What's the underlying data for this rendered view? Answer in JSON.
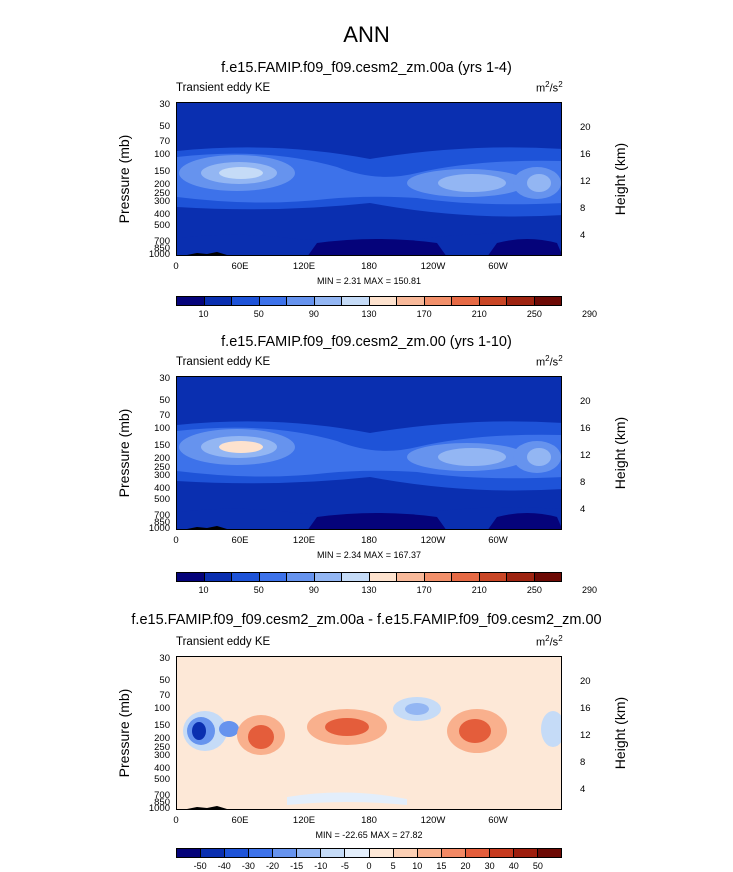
{
  "main_title": "ANN",
  "chart_data": [
    {
      "type": "heatmap",
      "title": "f.e15.FAMIP.f09_f09.cesm2_zm.00a (yrs 1-4)",
      "left_label": "Transient eddy KE",
      "units": {
        "base": "m",
        "exp1": "2",
        "mid": "/s",
        "exp2": "2"
      },
      "ylabel": "Pressure (mb)",
      "y2label": "Height (km)",
      "y_ticks": [
        "30",
        "50",
        "70",
        "100",
        "150",
        "200",
        "250",
        "300",
        "400",
        "500",
        "700",
        "850",
        "1000"
      ],
      "y2_ticks": [
        "20",
        "16",
        "12",
        "8",
        "4"
      ],
      "x_ticks": [
        "0",
        "60E",
        "120E",
        "180",
        "120W",
        "60W"
      ],
      "min": 2.31,
      "max": 150.81,
      "minmax_text": "MIN =   2.31  MAX = 150.81",
      "colorbar_labels": [
        "10",
        "50",
        "90",
        "130",
        "170",
        "210",
        "250",
        "290"
      ],
      "colorbar_colors": [
        "#05037a",
        "#0a2fb0",
        "#1e53d8",
        "#3d72ea",
        "#6693ee",
        "#93b6f3",
        "#c5dbf7",
        "#fde2ce",
        "#f8b99a",
        "#f2906b",
        "#e66a45",
        "#c94626",
        "#9e2411",
        "#6d0a05"
      ]
    },
    {
      "type": "heatmap",
      "title": "f.e15.FAMIP.f09_f09.cesm2_zm.00 (yrs 1-10)",
      "left_label": "Transient eddy KE",
      "units": {
        "base": "m",
        "exp1": "2",
        "mid": "/s",
        "exp2": "2"
      },
      "ylabel": "Pressure (mb)",
      "y2label": "Height (km)",
      "y_ticks": [
        "30",
        "50",
        "70",
        "100",
        "150",
        "200",
        "250",
        "300",
        "400",
        "500",
        "700",
        "850",
        "1000"
      ],
      "y2_ticks": [
        "20",
        "16",
        "12",
        "8",
        "4"
      ],
      "x_ticks": [
        "0",
        "60E",
        "120E",
        "180",
        "120W",
        "60W"
      ],
      "min": 2.34,
      "max": 167.37,
      "minmax_text": "MIN =   2.34  MAX = 167.37",
      "colorbar_labels": [
        "10",
        "50",
        "90",
        "130",
        "170",
        "210",
        "250",
        "290"
      ],
      "colorbar_colors": [
        "#05037a",
        "#0a2fb0",
        "#1e53d8",
        "#3d72ea",
        "#6693ee",
        "#93b6f3",
        "#c5dbf7",
        "#fde2ce",
        "#f8b99a",
        "#f2906b",
        "#e66a45",
        "#c94626",
        "#9e2411",
        "#6d0a05"
      ]
    },
    {
      "type": "heatmap",
      "title": "f.e15.FAMIP.f09_f09.cesm2_zm.00a - f.e15.FAMIP.f09_f09.cesm2_zm.00",
      "left_label": "Transient eddy KE",
      "units": {
        "base": "m",
        "exp1": "2",
        "mid": "/s",
        "exp2": "2"
      },
      "ylabel": "Pressure (mb)",
      "y2label": "Height (km)",
      "y_ticks": [
        "30",
        "50",
        "70",
        "100",
        "150",
        "200",
        "250",
        "300",
        "400",
        "500",
        "700",
        "850",
        "1000"
      ],
      "y2_ticks": [
        "20",
        "16",
        "12",
        "8",
        "4"
      ],
      "x_ticks": [
        "0",
        "60E",
        "120E",
        "180",
        "120W",
        "60W"
      ],
      "min": -22.65,
      "max": 27.82,
      "minmax_text": "MIN = -22.65  MAX = 27.82",
      "colorbar_labels": [
        "-50",
        "-40",
        "-30",
        "-20",
        "-15",
        "-10",
        "-5",
        "0",
        "5",
        "10",
        "15",
        "20",
        "30",
        "40",
        "50"
      ],
      "colorbar_colors": [
        "#05037a",
        "#0a2fb0",
        "#1e53d8",
        "#3d72ea",
        "#6693ee",
        "#93b6f3",
        "#c5dbf7",
        "#e3eefb",
        "#fde8d7",
        "#fcd0b5",
        "#f9b08d",
        "#f28864",
        "#e45d3b",
        "#c73a1f",
        "#9e1e0e",
        "#6d0a05"
      ]
    }
  ]
}
